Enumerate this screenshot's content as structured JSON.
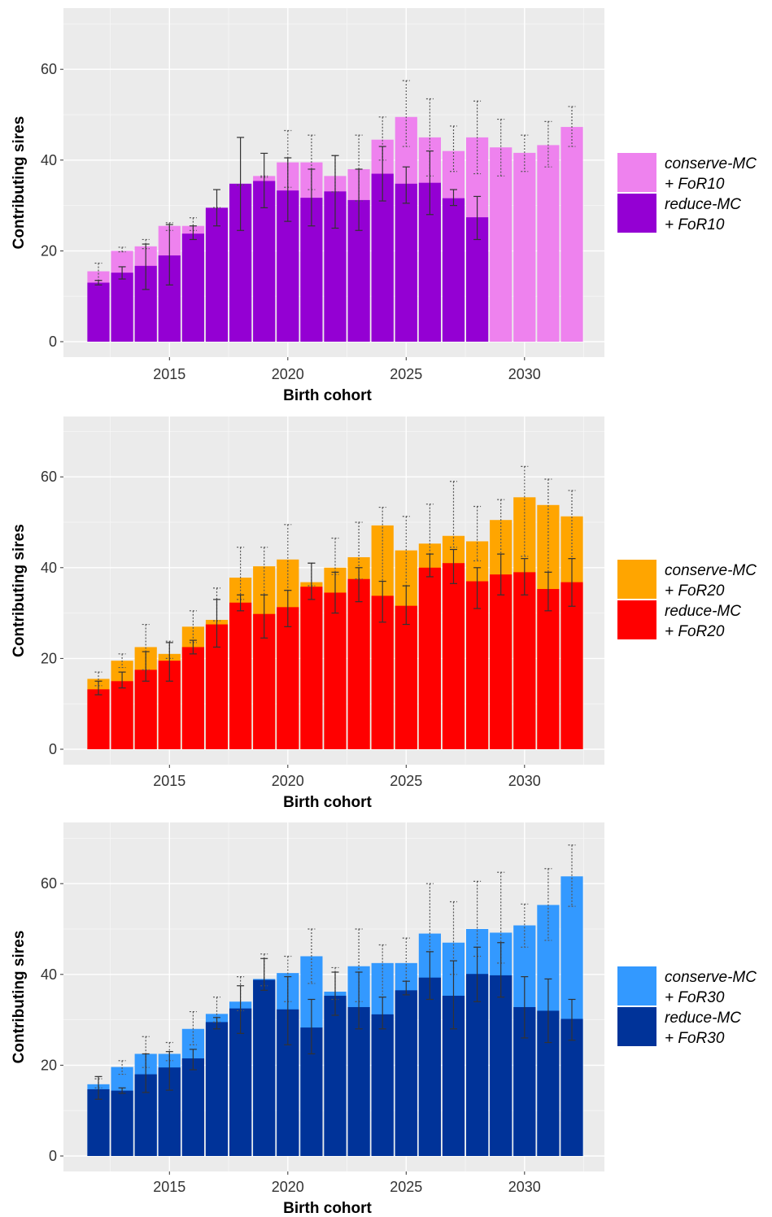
{
  "chart_data": [
    {
      "type": "bar",
      "xlabel": "Birth cohort",
      "ylabel": "Contributing sires",
      "ylim": [
        -1.5,
        73
      ],
      "xlim": [
        2011.2,
        2032.8
      ],
      "yticks": [
        0,
        20,
        40,
        60
      ],
      "xticks": [
        2015,
        2020,
        2025,
        2030
      ],
      "grid": true,
      "legend_position": "right",
      "x": [
        2012,
        2013,
        2014,
        2015,
        2016,
        2017,
        2018,
        2019,
        2020,
        2021,
        2022,
        2023,
        2024,
        2025,
        2026,
        2027,
        2028,
        2029,
        2030,
        2031,
        2032
      ],
      "series": [
        {
          "name": "conserve-MC + FoR10",
          "legend_lines": [
            "conserve-MC",
            "+ FoR10"
          ],
          "color": "#ee82ee",
          "values": [
            15.5,
            20,
            21,
            25.5,
            25.5,
            29.5,
            34.5,
            36.5,
            39.5,
            39.5,
            36.5,
            38,
            44.5,
            49.5,
            45,
            42,
            45,
            42.8,
            41.6,
            43.3,
            47.3
          ],
          "err_low": [
            13.5,
            19.8,
            20.5,
            24.5,
            24.5,
            29.5,
            34.5,
            36.2,
            34,
            33.5,
            33,
            31,
            40,
            43,
            36.5,
            37.5,
            37,
            36.5,
            37.5,
            38.5,
            43
          ],
          "err_high": [
            17.3,
            20.8,
            22.5,
            26.2,
            27.3,
            29.5,
            34.5,
            36.5,
            46.5,
            45.5,
            41,
            45.5,
            49.5,
            57.5,
            53.5,
            47.5,
            53,
            49,
            45.5,
            48.5,
            51.8
          ]
        },
        {
          "name": "reduce-MC + FoR10",
          "legend_lines": [
            "reduce-MC",
            "+ FoR10"
          ],
          "color": "#9400d3",
          "values": [
            13,
            15.2,
            16.7,
            19,
            23.8,
            29.5,
            34.8,
            35.4,
            33.3,
            31.7,
            33.1,
            31.2,
            37,
            34.8,
            35.0,
            31.6,
            27.4,
            null,
            null,
            null,
            null
          ],
          "err_low": [
            12.5,
            13.8,
            11.5,
            12.5,
            22.5,
            25.5,
            24.5,
            29.5,
            26.5,
            25.5,
            25,
            24.5,
            31,
            30.5,
            28,
            30,
            22.5,
            null,
            null,
            null,
            null
          ],
          "err_high": [
            13.5,
            16.5,
            21.5,
            25.8,
            25.5,
            33.5,
            45,
            41.5,
            40.5,
            38,
            41,
            38,
            43,
            38.5,
            42,
            33.5,
            32,
            null,
            null,
            null,
            null
          ]
        }
      ]
    },
    {
      "type": "bar",
      "xlabel": "Birth cohort",
      "ylabel": "Contributing sires",
      "ylim": [
        -1.5,
        73
      ],
      "xlim": [
        2011.2,
        2032.8
      ],
      "yticks": [
        0,
        20,
        40,
        60
      ],
      "xticks": [
        2015,
        2020,
        2025,
        2030
      ],
      "grid": true,
      "legend_position": "right",
      "x": [
        2012,
        2013,
        2014,
        2015,
        2016,
        2017,
        2018,
        2019,
        2020,
        2021,
        2022,
        2023,
        2024,
        2025,
        2026,
        2027,
        2028,
        2029,
        2030,
        2031,
        2032
      ],
      "series": [
        {
          "name": "conserve-MC + FoR20",
          "legend_lines": [
            "conserve-MC",
            "+ FoR20"
          ],
          "color": "#ffa500",
          "values": [
            15.5,
            19.5,
            22.5,
            21,
            27,
            28.5,
            37.8,
            40.3,
            41.8,
            36.8,
            40,
            42.3,
            49.3,
            43.8,
            45.3,
            47,
            45.8,
            50.5,
            55.5,
            53.8,
            51.3
          ],
          "err_low": [
            14,
            18,
            17.5,
            20,
            23.5,
            28.3,
            33,
            34,
            35,
            36,
            38.5,
            37.5,
            37,
            36,
            43,
            44.5,
            41.5,
            43,
            42.5,
            39,
            42
          ],
          "err_high": [
            17,
            21,
            27.5,
            23.8,
            30.5,
            35.5,
            44.5,
            44.5,
            49.5,
            41,
            46.5,
            50,
            53.3,
            51.3,
            54,
            59,
            53.5,
            55,
            62.3,
            59.5,
            57
          ]
        },
        {
          "name": "reduce-MC + FoR20",
          "legend_lines": [
            "reduce-MC",
            "+ FoR20"
          ],
          "color": "#ff0000",
          "values": [
            13.2,
            15,
            17.5,
            19.5,
            22.5,
            27.5,
            32.3,
            29.8,
            31.3,
            35.8,
            34.5,
            37.5,
            33.8,
            31.6,
            40,
            41,
            37,
            38.5,
            39,
            35.3,
            36.8
          ],
          "err_low": [
            12,
            13.5,
            15,
            15,
            21,
            22.5,
            30.5,
            24.5,
            27,
            33,
            30,
            32.5,
            28,
            27.5,
            38,
            36.5,
            31,
            34,
            34,
            30.5,
            31.5
          ],
          "err_high": [
            15,
            17,
            21.5,
            23.5,
            24,
            33,
            34,
            34,
            35,
            41,
            39,
            40,
            37,
            36,
            43,
            44,
            40,
            43,
            42,
            39,
            42
          ]
        }
      ]
    },
    {
      "type": "bar",
      "xlabel": "Birth cohort",
      "ylabel": "Contributing sires",
      "ylim": [
        -1.5,
        73
      ],
      "xlim": [
        2011.2,
        2032.8
      ],
      "yticks": [
        0,
        20,
        40,
        60
      ],
      "xticks": [
        2015,
        2020,
        2025,
        2030
      ],
      "grid": true,
      "legend_position": "right",
      "x": [
        2012,
        2013,
        2014,
        2015,
        2016,
        2017,
        2018,
        2019,
        2020,
        2021,
        2022,
        2023,
        2024,
        2025,
        2026,
        2027,
        2028,
        2029,
        2030,
        2031,
        2032
      ],
      "series": [
        {
          "name": "conserve-MC + FoR30",
          "legend_lines": [
            "conserve-MC",
            "+ FoR30"
          ],
          "color": "#3399ff",
          "values": [
            15.8,
            19.6,
            22.5,
            22.5,
            28,
            31.3,
            34,
            39,
            40.3,
            44,
            36.2,
            41.8,
            42.5,
            42.5,
            49,
            47,
            50,
            49.2,
            50.8,
            55.3,
            61.6
          ],
          "err_low": [
            15,
            18,
            19.5,
            21,
            24.5,
            29.5,
            32,
            37.5,
            34,
            38,
            34.5,
            34,
            35,
            38.5,
            45,
            40,
            44,
            42.5,
            46,
            47.5,
            55
          ],
          "err_high": [
            17,
            21,
            26.3,
            25,
            31.8,
            35,
            39.5,
            44.5,
            44,
            50,
            41.5,
            50,
            46.5,
            48,
            60,
            56,
            60.5,
            62.5,
            55.5,
            63.3,
            68.5
          ]
        },
        {
          "name": "reduce-MC + FoR30",
          "legend_lines": [
            "reduce-MC",
            "+ FoR30"
          ],
          "color": "#003399",
          "values": [
            14.7,
            14.4,
            18,
            19.5,
            21.5,
            29.5,
            32.5,
            38.8,
            32.3,
            28.3,
            35.3,
            32.8,
            31.2,
            36.5,
            39.3,
            35.3,
            40.1,
            39.8,
            32.8,
            32,
            30.2
          ],
          "err_low": [
            12.5,
            13.8,
            14,
            14.5,
            19,
            28,
            27,
            36.5,
            24.5,
            22.5,
            31,
            28,
            28,
            35.5,
            34.5,
            28,
            34,
            35,
            26,
            25,
            25.5
          ],
          "err_high": [
            17.5,
            15,
            22.5,
            23,
            23.5,
            30.5,
            37.5,
            43.5,
            39.5,
            34.5,
            40.5,
            40.5,
            35,
            38.5,
            45,
            43,
            46,
            47,
            39.5,
            39,
            34.5
          ]
        }
      ]
    }
  ]
}
